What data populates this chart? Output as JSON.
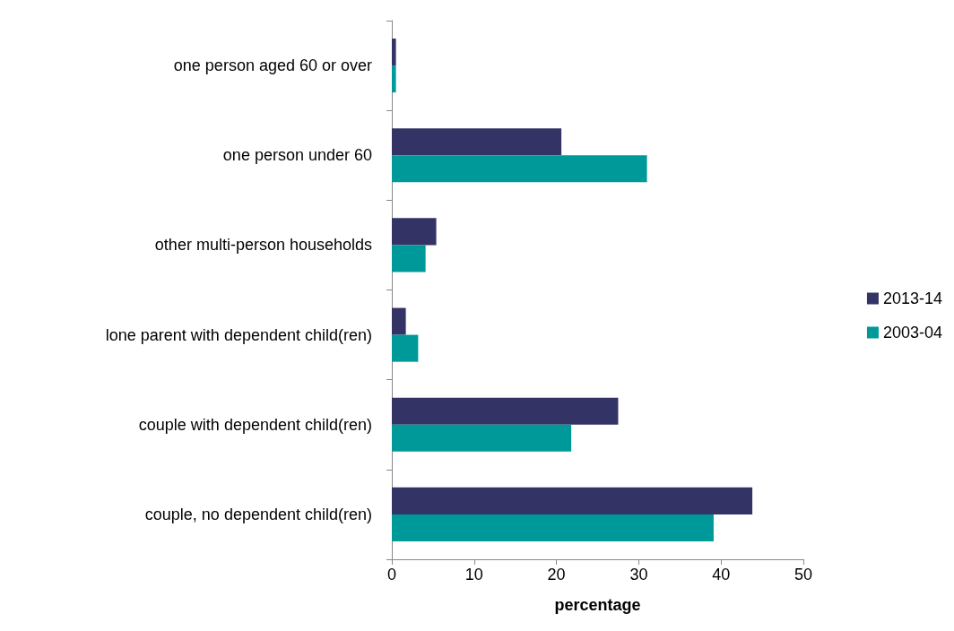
{
  "chart_data": {
    "type": "bar",
    "orientation": "horizontal",
    "xlabel": "percentage",
    "categories": [
      "one person aged 60 or over",
      "one person under 60",
      "other multi-person households",
      "lone parent with dependent child(ren)",
      "couple with dependent child(ren)",
      "couple, no dependent child(ren)"
    ],
    "series": [
      {
        "name": "2013-14",
        "color": "#333366",
        "values": [
          0.5,
          20.6,
          5.4,
          1.7,
          27.5,
          43.8
        ]
      },
      {
        "name": "2003-04",
        "color": "#009999",
        "values": [
          0.5,
          31.0,
          4.1,
          3.2,
          21.8,
          39.1
        ]
      }
    ],
    "xlim": [
      0,
      50
    ],
    "xticks": [
      0,
      10,
      20,
      30,
      40,
      50
    ],
    "grid": false,
    "legend": "right"
  }
}
